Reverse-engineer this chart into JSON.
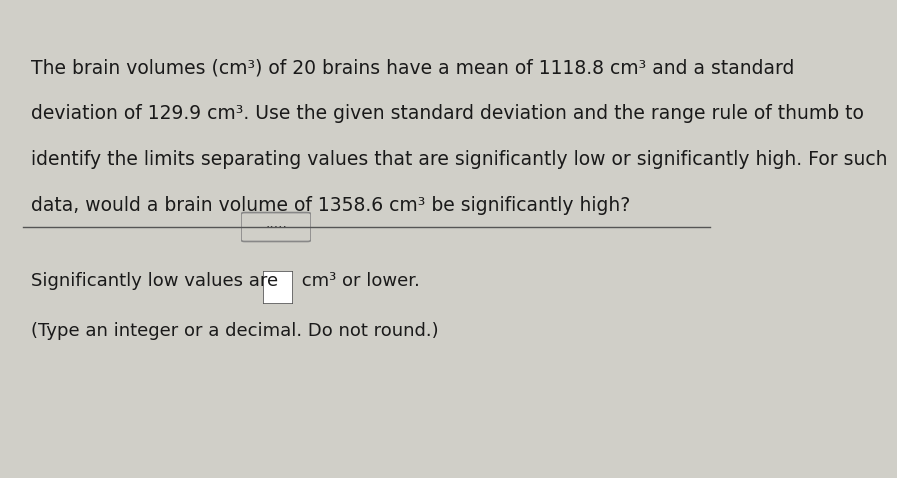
{
  "background_color": "#d0cfc8",
  "left_bar_color": "#3a5a8c",
  "line_color": "#555555",
  "text_color": "#1a1a1a",
  "title_lines": [
    "The brain volumes (cm³) of 20 brains have a mean of 1118.8 cm³ and a standard",
    "deviation of 129.9 cm³. Use the given standard deviation and the range rule of thumb to",
    "identify the limits separating values that are significantly low or significantly high. For such",
    "data, would a brain volume of 1358.6 cm³ be significantly high?"
  ],
  "answer_line1": "Significantly low values are",
  "answer_line1_suffix": " cm³ or lower.",
  "answer_line2": "(Type an integer or a decimal. Do not round.)",
  "font_size_main": 13.5,
  "font_size_answer": 13.0
}
